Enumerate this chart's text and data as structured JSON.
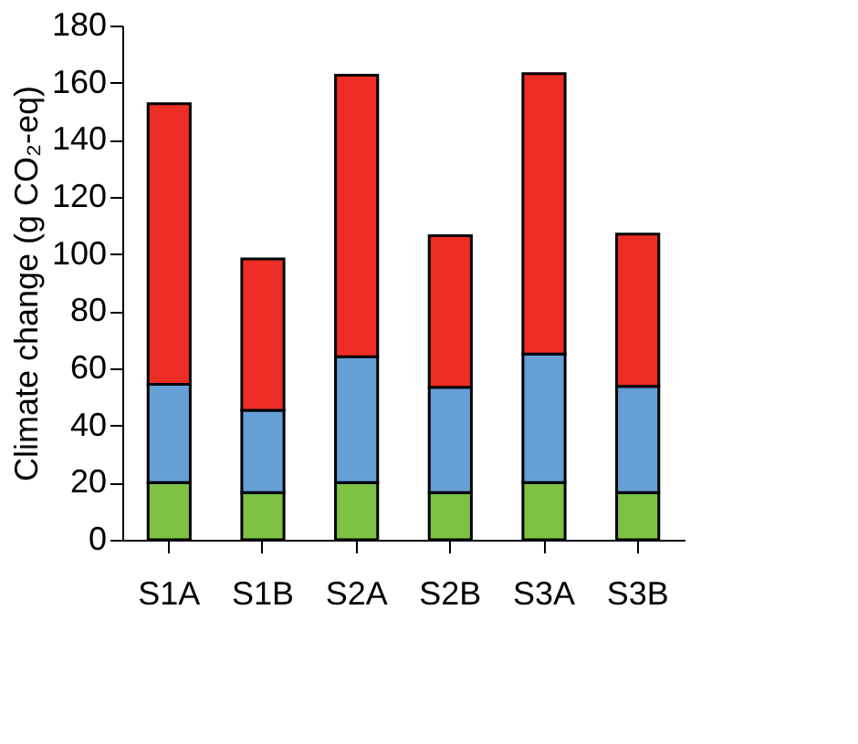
{
  "chart_data": {
    "type": "bar",
    "stacked": true,
    "ylabel": "Climate change (g CO₂-eq)",
    "categories": [
      "S1A",
      "S1B",
      "S2A",
      "S2B",
      "S3A",
      "S3B"
    ],
    "series": [
      {
        "color": "#7dc242",
        "values": [
          20,
          16.5,
          20,
          16.5,
          20,
          16.5
        ]
      },
      {
        "color": "#659fd6",
        "values": [
          34.4,
          28.8,
          44.1,
          36.9,
          45,
          37.2
        ]
      },
      {
        "color": "#ee2d24",
        "values": [
          98.2,
          53,
          98.5,
          53,
          98.2,
          53.3
        ]
      }
    ],
    "ylim": [
      0,
      180
    ],
    "yticks": [
      0,
      20,
      40,
      60,
      80,
      100,
      120,
      140,
      160,
      180
    ],
    "grid": false
  }
}
